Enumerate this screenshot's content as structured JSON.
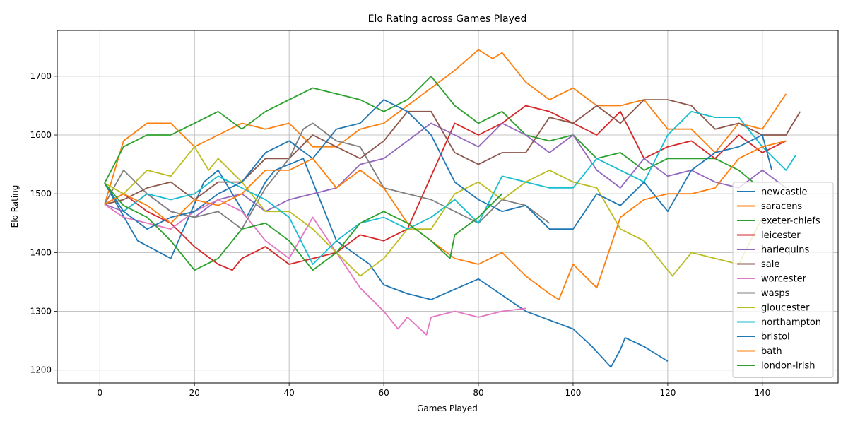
{
  "chart_data": {
    "type": "line",
    "title": "Elo Rating across Games Played",
    "xlabel": "Games Played",
    "ylabel": "Elo Rating",
    "xlim": [
      -9,
      156
    ],
    "ylim": [
      1178,
      1778
    ],
    "xticks": [
      0,
      20,
      40,
      60,
      80,
      100,
      120,
      140
    ],
    "yticks": [
      1200,
      1300,
      1400,
      1500,
      1600,
      1700
    ],
    "grid": true,
    "legend_position": "right",
    "series": [
      {
        "name": "newcastle",
        "color": "#1f77b4",
        "x": [
          1,
          8,
          15,
          22,
          25,
          31,
          35,
          37,
          43,
          50,
          57,
          60,
          65,
          70,
          80,
          90,
          100,
          104,
          108,
          110,
          111,
          115,
          120
        ],
        "y": [
          1518,
          1420,
          1390,
          1520,
          1540,
          1460,
          1520,
          1540,
          1560,
          1420,
          1380,
          1345,
          1330,
          1320,
          1355,
          1300,
          1270,
          1240,
          1205,
          1235,
          1255,
          1240,
          1215
        ]
      },
      {
        "name": "saracens",
        "color": "#ff7f0e",
        "x": [
          1,
          5,
          10,
          15,
          20,
          25,
          30,
          35,
          40,
          45,
          50,
          55,
          60,
          65,
          70,
          75,
          80,
          83,
          85,
          90,
          95,
          100,
          105,
          110,
          115,
          120,
          125,
          130,
          135,
          140,
          145
        ],
        "y": [
          1482,
          1590,
          1620,
          1620,
          1580,
          1600,
          1620,
          1610,
          1620,
          1580,
          1580,
          1610,
          1620,
          1650,
          1680,
          1710,
          1745,
          1730,
          1740,
          1690,
          1660,
          1680,
          1650,
          1650,
          1660,
          1610,
          1610,
          1570,
          1620,
          1610,
          1670
        ]
      },
      {
        "name": "exeter-chiefs",
        "color": "#2ca02c",
        "x": [
          1,
          5,
          10,
          15,
          20,
          25,
          30,
          35,
          40,
          45,
          50,
          55,
          60,
          65,
          70,
          75,
          80,
          85,
          90,
          95,
          100,
          105,
          110,
          115,
          120,
          125,
          130,
          135,
          138
        ],
        "y": [
          1518,
          1580,
          1600,
          1600,
          1620,
          1640,
          1610,
          1640,
          1660,
          1680,
          1670,
          1660,
          1640,
          1660,
          1700,
          1650,
          1620,
          1640,
          1600,
          1590,
          1600,
          1560,
          1570,
          1540,
          1560,
          1560,
          1560,
          1540,
          1520
        ]
      },
      {
        "name": "leicester",
        "color": "#d62728",
        "x": [
          1,
          5,
          10,
          15,
          20,
          25,
          28,
          30,
          35,
          40,
          45,
          50,
          55,
          60,
          65,
          70,
          75,
          80,
          85,
          90,
          95,
          100,
          105,
          110,
          115,
          120,
          125,
          130,
          135,
          140,
          145
        ],
        "y": [
          1482,
          1500,
          1470,
          1450,
          1410,
          1380,
          1370,
          1390,
          1410,
          1380,
          1390,
          1400,
          1430,
          1420,
          1440,
          1530,
          1620,
          1600,
          1620,
          1650,
          1640,
          1620,
          1600,
          1640,
          1560,
          1580,
          1590,
          1560,
          1600,
          1570,
          1590
        ]
      },
      {
        "name": "harlequins",
        "color": "#9467bd",
        "x": [
          1,
          5,
          10,
          15,
          20,
          25,
          30,
          35,
          40,
          45,
          50,
          55,
          60,
          65,
          70,
          75,
          80,
          85,
          90,
          95,
          100,
          105,
          110,
          115,
          120,
          125,
          130,
          135,
          140,
          145
        ],
        "y": [
          1482,
          1470,
          1500,
          1470,
          1460,
          1490,
          1500,
          1470,
          1490,
          1500,
          1510,
          1550,
          1560,
          1590,
          1620,
          1600,
          1580,
          1620,
          1600,
          1570,
          1600,
          1540,
          1510,
          1560,
          1530,
          1540,
          1520,
          1510,
          1540,
          1510
        ]
      },
      {
        "name": "sale",
        "color": "#8c564b",
        "x": [
          1,
          5,
          10,
          15,
          20,
          25,
          30,
          35,
          40,
          45,
          50,
          55,
          60,
          65,
          70,
          75,
          80,
          85,
          90,
          95,
          100,
          105,
          110,
          115,
          120,
          125,
          130,
          135,
          140,
          145,
          148
        ],
        "y": [
          1482,
          1490,
          1510,
          1520,
          1490,
          1520,
          1520,
          1560,
          1560,
          1600,
          1580,
          1560,
          1590,
          1640,
          1640,
          1570,
          1550,
          1570,
          1570,
          1630,
          1620,
          1650,
          1620,
          1660,
          1660,
          1650,
          1610,
          1620,
          1600,
          1600,
          1640
        ]
      },
      {
        "name": "worcester",
        "color": "#e377c2",
        "x": [
          1,
          5,
          10,
          15,
          20,
          25,
          30,
          35,
          40,
          45,
          50,
          55,
          60,
          63,
          65,
          69,
          70,
          75,
          80,
          85,
          90
        ],
        "y": [
          1482,
          1460,
          1450,
          1440,
          1470,
          1490,
          1470,
          1420,
          1390,
          1460,
          1400,
          1340,
          1300,
          1270,
          1290,
          1260,
          1290,
          1300,
          1290,
          1300,
          1305
        ]
      },
      {
        "name": "wasps",
        "color": "#7f7f7f",
        "x": [
          1,
          5,
          10,
          15,
          20,
          25,
          30,
          35,
          40,
          43,
          45,
          50,
          55,
          60,
          65,
          70,
          75,
          80,
          85,
          90,
          95
        ],
        "y": [
          1482,
          1540,
          1500,
          1470,
          1460,
          1470,
          1440,
          1510,
          1560,
          1610,
          1620,
          1590,
          1580,
          1510,
          1500,
          1490,
          1470,
          1450,
          1490,
          1480,
          1450
        ]
      },
      {
        "name": "gloucester",
        "color": "#bcbd22",
        "x": [
          1,
          5,
          10,
          15,
          20,
          23,
          25,
          30,
          35,
          40,
          45,
          50,
          55,
          60,
          65,
          70,
          75,
          80,
          85,
          90,
          95,
          100,
          105,
          110,
          115,
          121,
          125,
          130,
          135,
          140
        ],
        "y": [
          1518,
          1500,
          1540,
          1530,
          1580,
          1540,
          1560,
          1520,
          1470,
          1470,
          1440,
          1400,
          1360,
          1390,
          1440,
          1440,
          1500,
          1520,
          1490,
          1520,
          1540,
          1520,
          1510,
          1440,
          1420,
          1360,
          1400,
          1390,
          1380,
          1460
        ]
      },
      {
        "name": "northampton",
        "color": "#17becf",
        "x": [
          1,
          5,
          10,
          15,
          20,
          25,
          30,
          35,
          40,
          45,
          50,
          55,
          60,
          65,
          70,
          75,
          80,
          85,
          90,
          95,
          100,
          105,
          110,
          115,
          120,
          125,
          130,
          135,
          140,
          145,
          147
        ],
        "y": [
          1518,
          1470,
          1500,
          1490,
          1500,
          1530,
          1510,
          1490,
          1460,
          1380,
          1420,
          1450,
          1460,
          1440,
          1460,
          1490,
          1450,
          1530,
          1520,
          1510,
          1510,
          1560,
          1540,
          1520,
          1600,
          1640,
          1630,
          1630,
          1580,
          1540,
          1565
        ]
      },
      {
        "name": "bristol",
        "color": "#1f77b4",
        "x": [
          1,
          5,
          10,
          15,
          20,
          25,
          30,
          35,
          40,
          45,
          50,
          55,
          60,
          65,
          70,
          75,
          80,
          85,
          90,
          95,
          100,
          105,
          110,
          115,
          120,
          125,
          130,
          135,
          140,
          142
        ],
        "y": [
          1518,
          1470,
          1440,
          1460,
          1470,
          1500,
          1520,
          1570,
          1590,
          1560,
          1610,
          1620,
          1660,
          1640,
          1600,
          1520,
          1490,
          1470,
          1480,
          1440,
          1440,
          1500,
          1480,
          1520,
          1470,
          1540,
          1570,
          1580,
          1600,
          1540
        ]
      },
      {
        "name": "bath",
        "color": "#ff7f0e",
        "x": [
          1,
          5,
          10,
          15,
          20,
          25,
          30,
          35,
          40,
          45,
          50,
          55,
          60,
          65,
          70,
          75,
          80,
          85,
          90,
          95,
          97,
          100,
          105,
          110,
          115,
          120,
          125,
          130,
          135,
          140,
          145
        ],
        "y": [
          1482,
          1500,
          1480,
          1450,
          1490,
          1480,
          1500,
          1540,
          1540,
          1560,
          1510,
          1540,
          1510,
          1450,
          1420,
          1390,
          1380,
          1400,
          1360,
          1330,
          1320,
          1380,
          1340,
          1460,
          1490,
          1500,
          1500,
          1510,
          1560,
          1580,
          1590
        ]
      },
      {
        "name": "london-irish",
        "color": "#2ca02c",
        "x": [
          1,
          5,
          10,
          15,
          20,
          25,
          30,
          35,
          40,
          45,
          50,
          55,
          60,
          65,
          70,
          74,
          75,
          80,
          85
        ],
        "y": [
          1518,
          1480,
          1460,
          1420,
          1370,
          1390,
          1440,
          1450,
          1420,
          1370,
          1400,
          1450,
          1470,
          1450,
          1420,
          1390,
          1430,
          1460,
          1500
        ]
      }
    ]
  }
}
